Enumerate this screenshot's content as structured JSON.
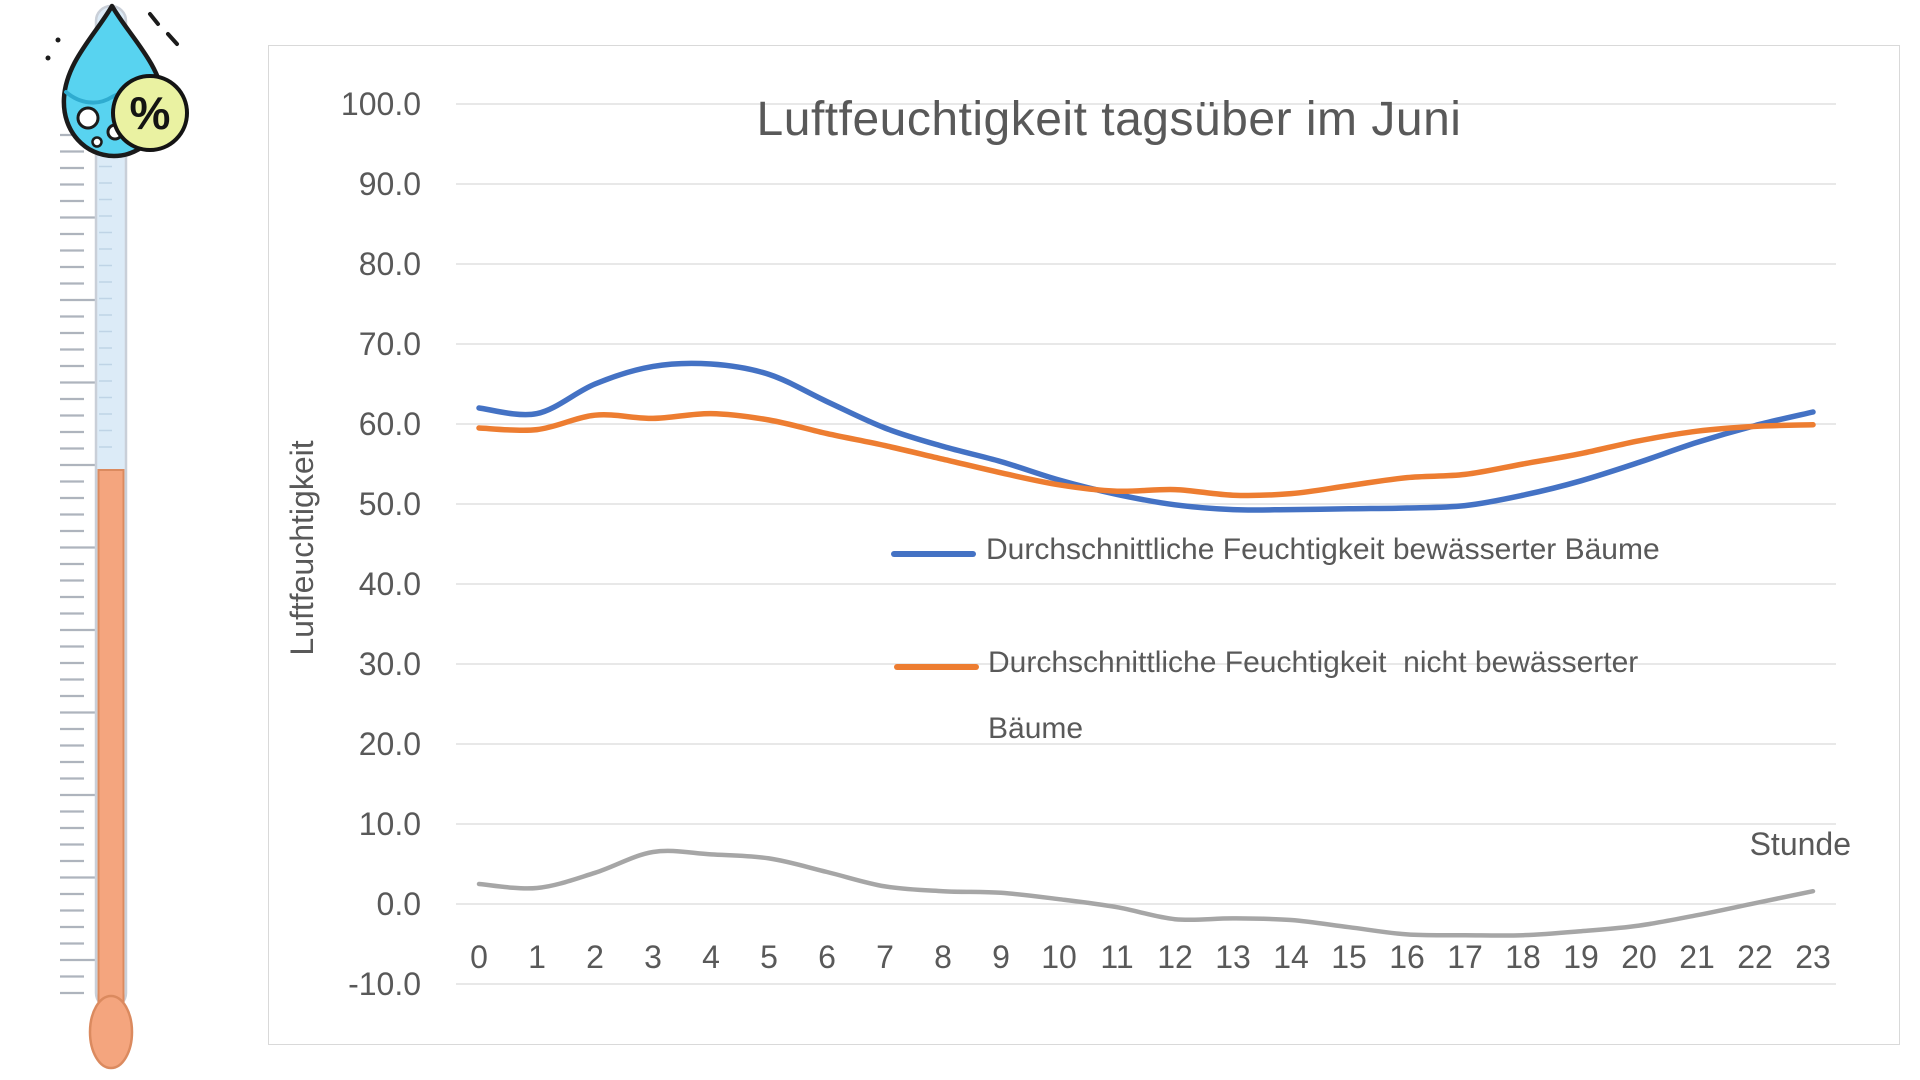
{
  "illustration": {
    "percent_symbol": "%",
    "colors": {
      "drop_fill": "#58D3F0",
      "drop_wave": "#2FACD0",
      "badge_fill": "#EAF2A2",
      "outline": "#1B1B1B",
      "tube_upper": "#DCEBF7",
      "tube_liquid": "#F4A57E",
      "tube_liquid_border": "#DB8A5F",
      "tube_border": "#C9CFD8",
      "ruler_tick": "#AEB4BD"
    }
  },
  "chart": {
    "title": "Luftfeuchtigkeit tagsüber im Juni",
    "y_axis_title": "Luftfeuchtigkeit",
    "x_axis_title": "Stunde",
    "text_color": "#595959",
    "gridline_color": "#D9D9D9",
    "border_color": "#D9D9D9",
    "legend": [
      {
        "color": "#4472C4",
        "lines": [
          "Durchschnittliche Feuchtigkeit bewässerter Bäume"
        ]
      },
      {
        "color": "#ED7D31",
        "lines": [
          "Durchschnittliche Feuchtigkeit  nicht bewässerter",
          "Bäume"
        ]
      }
    ]
  },
  "chart_data": {
    "type": "line",
    "title": "Luftfeuchtigkeit tagsüber im Juni",
    "xlabel": "Stunde",
    "ylabel": "Luftfeuchtigkeit",
    "x": [
      0,
      1,
      2,
      3,
      4,
      5,
      6,
      7,
      8,
      9,
      10,
      11,
      12,
      13,
      14,
      15,
      16,
      17,
      18,
      19,
      20,
      21,
      22,
      23
    ],
    "ylim": [
      -10,
      100
    ],
    "yticks": [
      100,
      90,
      80,
      70,
      60,
      50,
      40,
      30,
      20,
      10,
      0,
      -10
    ],
    "ytick_format_decimals": 1,
    "grid": true,
    "legend_position": "inside-center-right",
    "series": [
      {
        "name": "Durchschnittliche Feuchtigkeit bewässerter Bäume",
        "color": "#4472C4",
        "in_legend": true,
        "values": [
          62.0,
          61.3,
          65.0,
          67.2,
          67.5,
          66.2,
          62.8,
          59.5,
          57.2,
          55.3,
          53.0,
          51.2,
          49.9,
          49.3,
          49.3,
          49.4,
          49.5,
          49.8,
          51.1,
          52.9,
          55.2,
          57.7,
          59.8,
          61.5
        ]
      },
      {
        "name": "Durchschnittliche Feuchtigkeit  nicht bewässerter Bäume",
        "color": "#ED7D31",
        "in_legend": true,
        "values": [
          59.5,
          59.3,
          61.1,
          60.7,
          61.3,
          60.5,
          58.8,
          57.3,
          55.6,
          53.9,
          52.4,
          51.6,
          51.8,
          51.1,
          51.3,
          52.3,
          53.3,
          53.7,
          55.0,
          56.3,
          57.9,
          59.1,
          59.7,
          59.9
        ]
      },
      {
        "name": "",
        "color": "#A6A6A6",
        "in_legend": false,
        "values": [
          2.5,
          2.0,
          3.9,
          6.5,
          6.2,
          5.7,
          4.0,
          2.2,
          1.6,
          1.4,
          0.6,
          -0.4,
          -1.9,
          -1.8,
          -2.0,
          -2.9,
          -3.8,
          -3.9,
          -3.9,
          -3.4,
          -2.7,
          -1.4,
          0.1,
          1.6
        ]
      }
    ]
  }
}
